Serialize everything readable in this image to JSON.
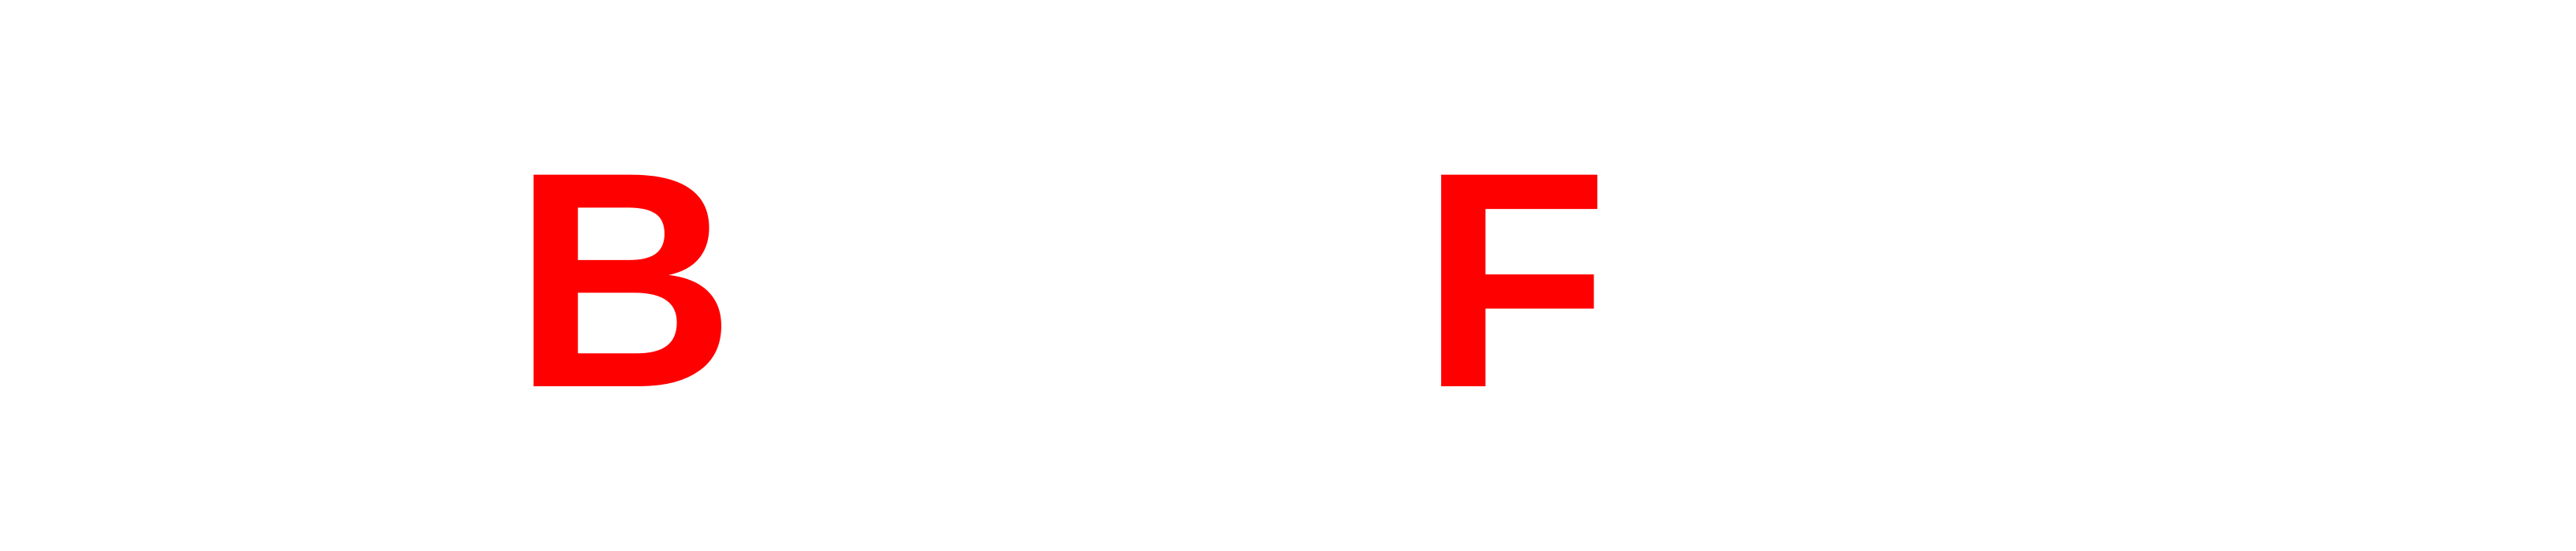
{
  "letters": {
    "first": "B",
    "second": "F"
  },
  "colors": {
    "background": "#ffffff",
    "letter": "#ff0000"
  }
}
